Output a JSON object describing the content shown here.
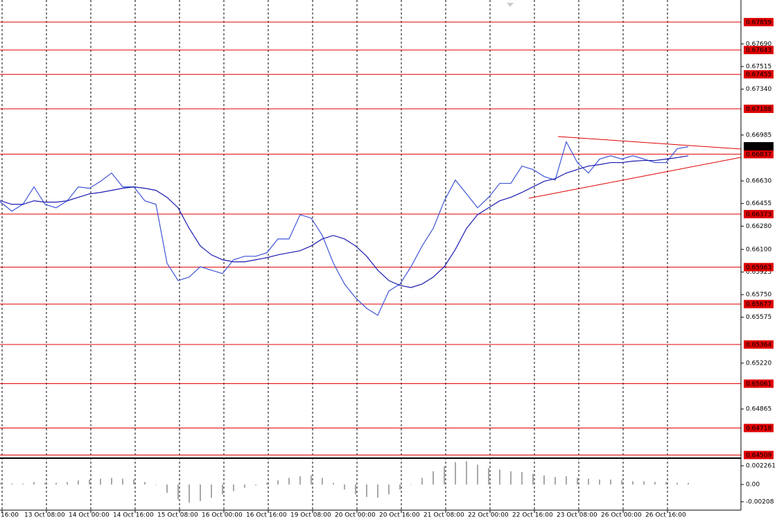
{
  "chart_data": [
    {
      "type": "line",
      "categories": [
        "16:00",
        null,
        null,
        null,
        "13 Oct 08:00",
        null,
        null,
        null,
        "14 Oct 00:00",
        null,
        null,
        null,
        "14 Oct 16:00",
        null,
        null,
        null,
        "15 Oct 08:00",
        null,
        null,
        null,
        "16 Oct 00:00",
        null,
        null,
        null,
        "16 Oct 16:00",
        null,
        null,
        null,
        "19 Oct 08:00",
        null,
        null,
        null,
        "20 Oct 00:00",
        null,
        null,
        null,
        "20 Oct 16:00",
        null,
        null,
        null,
        "21 Oct 08:00",
        null,
        null,
        null,
        "22 Oct 00:00",
        null,
        null,
        null,
        "22 Oct 16:00",
        null,
        null,
        null,
        "23 Oct 08:00",
        null,
        null,
        null,
        "26 Oct 00:00",
        null,
        null,
        null,
        "26 Oct 16:00",
        null,
        null,
        null,
        null
      ],
      "series": [
        {
          "color": "#3f55d6",
          "values": [
            0.66449,
            0.66465,
            0.66465,
            0.66396,
            0.66449,
            0.66584,
            0.66449,
            0.66422,
            0.66476,
            0.66584,
            0.66573,
            0.66627,
            0.66691,
            0.66584,
            0.66584,
            0.66476,
            0.66449,
            0.65993,
            0.65859,
            0.65886,
            0.65966,
            0.65939,
            0.65913,
            0.6602,
            0.66047,
            0.66047,
            0.66074,
            0.66181,
            0.66181,
            0.66369,
            0.66342,
            0.66208,
            0.65993,
            0.65832,
            0.65725,
            0.65644,
            0.6559,
            0.65778,
            0.65832,
            0.65966,
            0.66127,
            0.66262,
            0.66476,
            0.66637,
            0.6653,
            0.66422,
            0.66503,
            0.66611,
            0.66611,
            0.66745,
            0.66718,
            0.66664,
            0.66637,
            0.66933,
            0.66772,
            0.66691,
            0.66799,
            0.66825,
            0.66799,
            0.66825,
            0.66799,
            0.66772,
            0.66772,
            0.66879,
            0.66895
          ]
        },
        {
          "color": "#1a1ab0",
          "values": [
            0.66476,
            0.66476,
            0.66476,
            0.66449,
            0.66449,
            0.66476,
            0.66466,
            0.66466,
            0.66476,
            0.66503,
            0.6653,
            0.66541,
            0.66557,
            0.66573,
            0.66584,
            0.66573,
            0.66557,
            0.66503,
            0.66422,
            0.66262,
            0.66127,
            0.66058,
            0.6602,
            0.66004,
            0.66004,
            0.6602,
            0.66036,
            0.66058,
            0.66074,
            0.6609,
            0.66127,
            0.66181,
            0.66208,
            0.66181,
            0.66127,
            0.66047,
            0.65939,
            0.65859,
            0.65821,
            0.65805,
            0.65832,
            0.65886,
            0.65966,
            0.661,
            0.66262,
            0.66369,
            0.66422,
            0.66476,
            0.66503,
            0.66541,
            0.66584,
            0.66627,
            0.66648,
            0.66691,
            0.66718,
            0.66745,
            0.66756,
            0.66772,
            0.66772,
            0.66783,
            0.66788,
            0.66788,
            0.66799,
            0.6681,
            0.66825
          ]
        }
      ],
      "ylim": [
        0.6449,
        0.6803
      ],
      "yticks": [
        {
          "value": 0.6769,
          "label": "0.67690"
        },
        0.67515,
        {
          "value": 0.6734,
          "label": "0.67340"
        },
        0.66985,
        {
          "value": 0.6663,
          "label": "0.66630"
        },
        0.66455,
        {
          "value": 0.6628,
          "label": "0.66280"
        },
        {
          "value": 0.661,
          "label": "0.66100"
        },
        0.65925,
        {
          "value": 0.6575,
          "label": "0.65750"
        },
        0.65575,
        {
          "value": 0.6522,
          "label": "0.65220"
        },
        0.64865
      ],
      "levels": [
        0.67859,
        0.67643,
        0.67455,
        0.67188,
        0.66837,
        0.66373,
        0.65963,
        0.65677,
        0.65364,
        0.65061,
        0.64718,
        0.64509
      ],
      "level_color": "#e00000",
      "current_price": 0.66898
    },
    {
      "type": "bar",
      "color": "#a8a8a8",
      "values": [
        0.0002,
        0.0002,
        0.0002,
        0.0001,
        0.0001,
        0.0003,
        0.0002,
        0.0002,
        0.0003,
        0.0005,
        0.0006,
        0.0007,
        0.0008,
        0.0007,
        0.0006,
        0.0003,
        0,
        -0.001,
        -0.0018,
        -0.0022,
        -0.002,
        -0.0016,
        -0.0012,
        -0.0008,
        -0.0004,
        -0.0001,
        0.0002,
        0.0005,
        0.0008,
        0.001,
        0.0011,
        0.0008,
        0.0002,
        -0.0006,
        -0.0012,
        -0.0015,
        -0.0016,
        -0.0012,
        -0.0006,
        0,
        0.0008,
        0.0016,
        0.0022,
        0.0027,
        0.0028,
        0.0024,
        0.002,
        0.0018,
        0.0016,
        0.0015,
        0.0013,
        0.0011,
        0.0009,
        0.001,
        0.0008,
        0.0007,
        0.0006,
        0.0006,
        0.0005,
        0.0004,
        0.0004,
        0.0003,
        0.0003,
        0.0002,
        0.0002
      ],
      "ylim": [
        -0.00301,
        0.0031
      ],
      "yticks": [
        0.002261,
        {
          "value": 0,
          "label": "0.00"
        },
        -0.00208
      ]
    }
  ]
}
